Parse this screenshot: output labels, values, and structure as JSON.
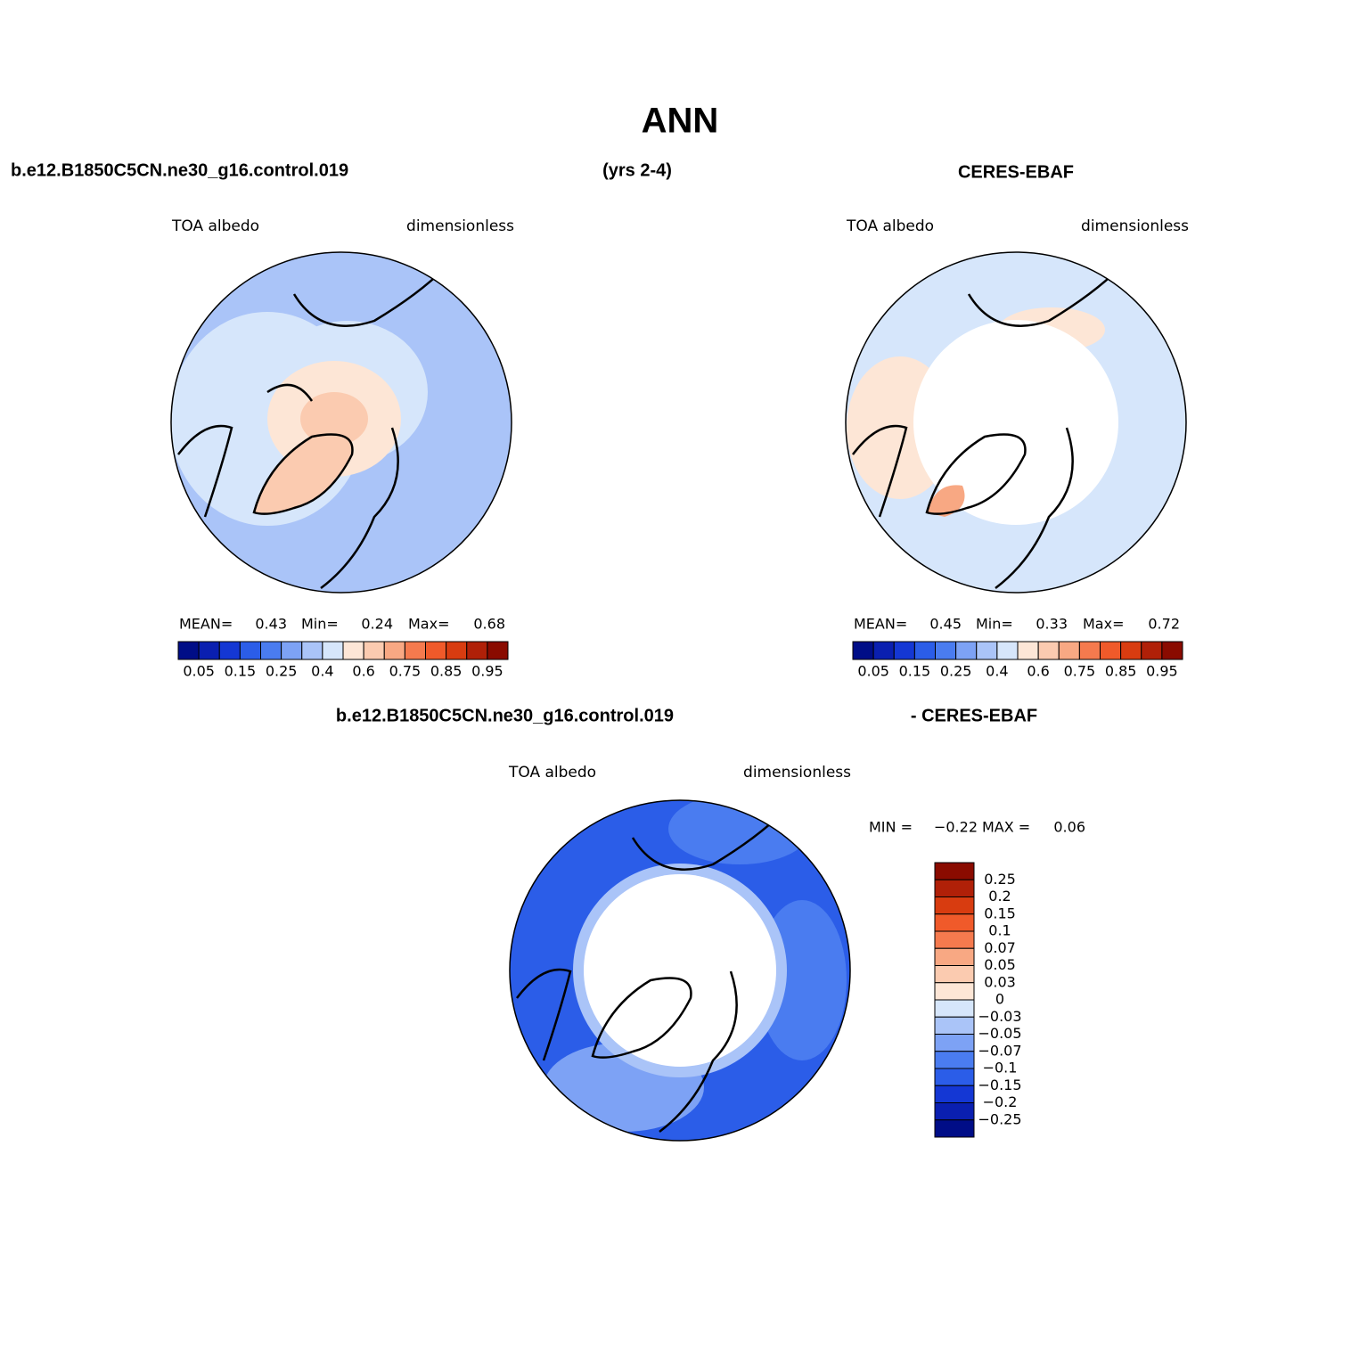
{
  "title": "ANN",
  "header": {
    "case": "b.e12.B1850C5CN.ne30_g16.control.019",
    "years": "(yrs 2-4)",
    "obs": "CERES-EBAF"
  },
  "palette": [
    "#000d87",
    "#0a1fb0",
    "#1437d4",
    "#2b5de8",
    "#4a7cf0",
    "#7da2f5",
    "#aac4f8",
    "#d6e6fb",
    "#fde6d6",
    "#fbcbb0",
    "#f8a883",
    "#f57a4e",
    "#f05a2a",
    "#d83c10",
    "#b02008",
    "#8a0b00"
  ],
  "panels": [
    {
      "left_label": "TOA albedo",
      "right_label": "dimensionless",
      "stats": [
        {
          "label": "MEAN=",
          "value": 0.43
        },
        {
          "label": "Min=",
          "value": 0.24
        },
        {
          "label": "Max=",
          "value": 0.68
        }
      ],
      "colorbar_labels": [
        0.05,
        0.15,
        0.25,
        0.4,
        0.6,
        0.75,
        0.85,
        0.95
      ]
    },
    {
      "left_label": "TOA albedo",
      "right_label": "dimensionless",
      "stats": [
        {
          "label": "MEAN=",
          "value": 0.45
        },
        {
          "label": "Min=",
          "value": 0.33
        },
        {
          "label": "Max=",
          "value": 0.72
        }
      ],
      "colorbar_labels": [
        0.05,
        0.15,
        0.25,
        0.4,
        0.6,
        0.75,
        0.85,
        0.95
      ]
    }
  ],
  "diff": {
    "case": "b.e12.B1850C5CN.ne30_g16.control.019",
    "obs": "- CERES-EBAF",
    "left_label": "TOA albedo",
    "right_label": "dimensionless",
    "min_label": "MIN =",
    "min": "−0.22",
    "max_label": "MAX =",
    "max": 0.06,
    "colorbar_labels": [
      0.25,
      0.2,
      0.15,
      0.1,
      0.07,
      0.05,
      0.03,
      0,
      "−0.03",
      "−0.05",
      "−0.07",
      "−0.1",
      "−0.15",
      "−0.2",
      "−0.25"
    ]
  }
}
